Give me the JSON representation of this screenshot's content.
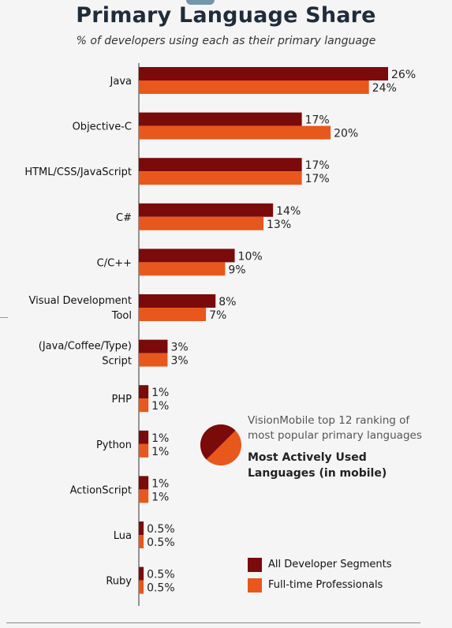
{
  "chart_data": {
    "type": "bar",
    "orientation": "horizontal",
    "title": "Primary Language Share",
    "subtitle": "% of developers using each as their primary language",
    "categories": [
      [
        "Java"
      ],
      [
        "Objective-C"
      ],
      [
        "HTML/CSS/JavaScript"
      ],
      [
        "C#"
      ],
      [
        "C/C++"
      ],
      [
        "Visual Development",
        "Tool"
      ],
      [
        "(Java/Coffee/Type)",
        "Script"
      ],
      [
        "PHP"
      ],
      [
        "Python"
      ],
      [
        "ActionScript"
      ],
      [
        "Lua"
      ],
      [
        "Ruby"
      ]
    ],
    "series": [
      {
        "name": "All Developer Segments",
        "color": "#7b0a0a",
        "values": [
          26,
          17,
          17,
          14,
          10,
          8,
          3,
          1,
          1,
          1,
          0.5,
          0.5
        ],
        "labels": [
          "26%",
          "17%",
          "17%",
          "14%",
          "10%",
          "8%",
          "3%",
          "1%",
          "1%",
          "1%",
          "0.5%",
          "0.5%"
        ]
      },
      {
        "name": "Full-time Professionals",
        "color": "#e8571c",
        "values": [
          24,
          20,
          17,
          13,
          9,
          7,
          3,
          1,
          1,
          1,
          0.5,
          0.5
        ],
        "labels": [
          "24%",
          "20%",
          "17%",
          "13%",
          "9%",
          "7%",
          "3%",
          "1%",
          "1%",
          "1%",
          "0.5%",
          "0.5%"
        ]
      }
    ],
    "xlim": [
      0,
      26
    ],
    "grid": false,
    "legend_position": "bottom-right"
  },
  "callout": {
    "line1": "VisionMobile top 12 ranking of",
    "line2": "most popular primary languages",
    "bold1": "Most Actively Used",
    "bold2": "Languages (in mobile)"
  }
}
